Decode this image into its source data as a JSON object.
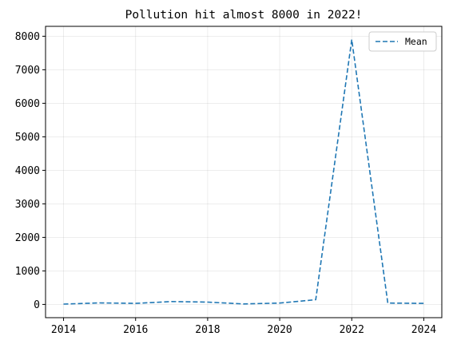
{
  "chart_data": {
    "type": "line",
    "title": "Pollution hit almost 8000 in 2022!",
    "xlabel": "",
    "ylabel": "",
    "x": [
      2014,
      2015,
      2016,
      2017,
      2018,
      2019,
      2020,
      2021,
      2022,
      2023,
      2024
    ],
    "series": [
      {
        "name": "Mean",
        "values": [
          10,
          45,
          30,
          85,
          70,
          15,
          40,
          140,
          7900,
          40,
          30
        ],
        "color": "#1f77b4",
        "line_style": "dashed"
      }
    ],
    "xlim": [
      2013.5,
      2024.5
    ],
    "ylim": [
      -395,
      8295
    ],
    "x_ticks": [
      "2014",
      "2016",
      "2018",
      "2020",
      "2022",
      "2024"
    ],
    "y_ticks": [
      "0",
      "1000",
      "2000",
      "3000",
      "4000",
      "5000",
      "6000",
      "7000",
      "8000"
    ],
    "grid": true,
    "legend_position": "upper right"
  }
}
